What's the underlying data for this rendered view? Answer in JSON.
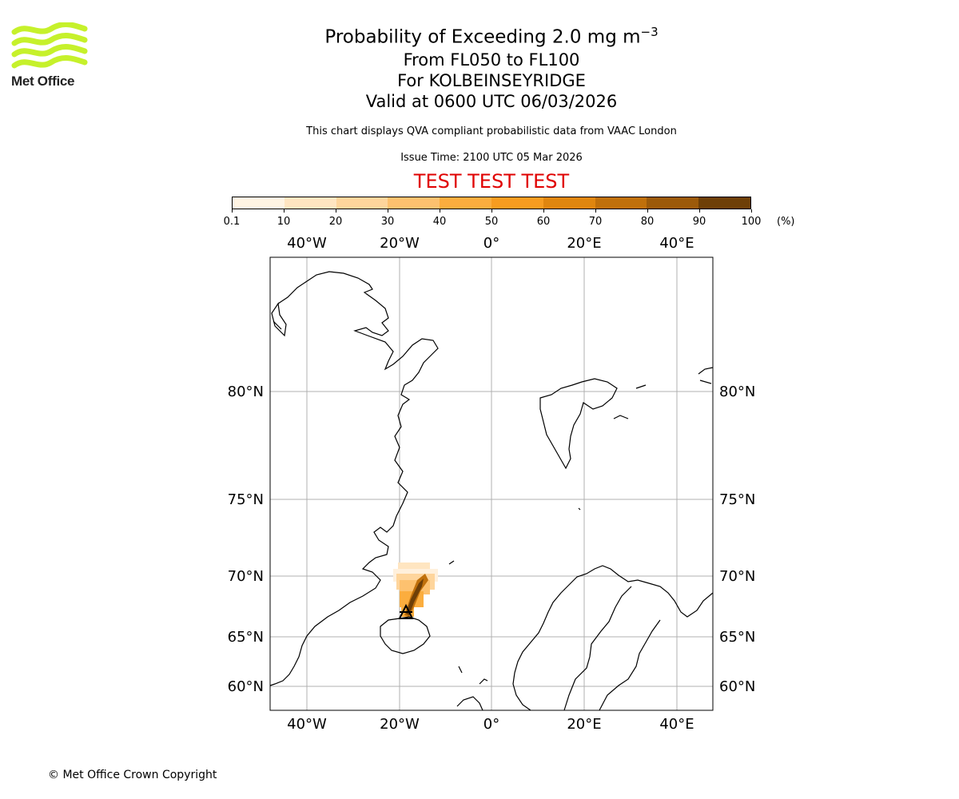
{
  "logo": {
    "text": "Met Office",
    "color": "#c6f12b"
  },
  "title": {
    "line1": "Probability of Exceeding 2.0 mg m",
    "line1_sup": "−3",
    "line2": "From FL050 to FL100",
    "line3": "For KOLBEINSEYRIDGE",
    "line4": "Valid at 0600 UTC 06/03/2026"
  },
  "subtitle": "This chart displays QVA compliant probabilistic data from VAAC London",
  "issue_time": "Issue Time: 2100 UTC 05 Mar 2026",
  "test_banner": "TEST TEST TEST",
  "colorbar": {
    "ticks": [
      "0.1",
      "10",
      "20",
      "30",
      "40",
      "50",
      "60",
      "70",
      "80",
      "90",
      "100"
    ],
    "unit": "(%)",
    "colors": [
      "#fff4e3",
      "#ffe5c1",
      "#fed59c",
      "#fdc16f",
      "#fbad3e",
      "#f79c20",
      "#e0860f",
      "#c0700b",
      "#9c5a0a",
      "#6e3f07"
    ]
  },
  "map": {
    "lon_labels": [
      "40°W",
      "20°W",
      "0°",
      "20°E",
      "40°E"
    ],
    "lat_labels": [
      "80°N",
      "75°N",
      "70°N",
      "65°N",
      "60°N"
    ],
    "grid": true,
    "volcano_marker": "triangle"
  },
  "footer": {
    "copyright": "© Met Office Crown Copyright"
  }
}
